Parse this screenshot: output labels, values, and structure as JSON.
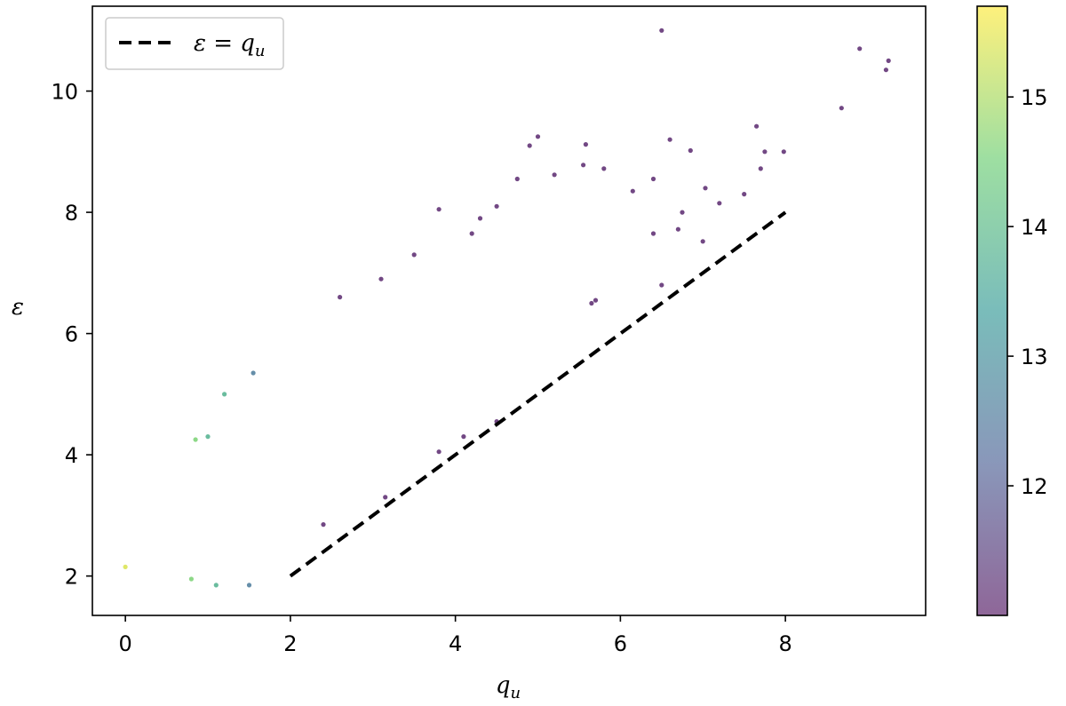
{
  "chart_data": {
    "type": "scatter",
    "xlabel": "q",
    "xlabel_sub": "u",
    "ylabel": "ε",
    "xlim": [
      -0.4,
      9.7
    ],
    "ylim": [
      1.35,
      11.4
    ],
    "xticks": [
      0,
      2,
      4,
      6,
      8
    ],
    "yticks": [
      2,
      4,
      6,
      8,
      10
    ],
    "grid": false,
    "legend_position": "top-left",
    "reference_line": {
      "style": "dashed",
      "color": "#000000",
      "label_lhs": "ε = q",
      "label_sub": "u",
      "x": [
        2,
        8
      ],
      "y": [
        2,
        8
      ]
    },
    "colormap": "viridis",
    "colorbar": {
      "range": [
        11.0,
        15.7
      ],
      "ticks": [
        12,
        13,
        14,
        15
      ]
    },
    "series": [
      {
        "points": [
          [
            6.5,
            11.0
          ],
          [
            8.9,
            10.7
          ],
          [
            9.25,
            10.5
          ],
          [
            9.22,
            10.35
          ],
          [
            8.68,
            9.72
          ],
          [
            5.0,
            9.25
          ],
          [
            4.9,
            9.1
          ],
          [
            5.58,
            9.12
          ],
          [
            6.6,
            9.2
          ],
          [
            6.85,
            9.02
          ],
          [
            7.65,
            9.42
          ],
          [
            7.75,
            9.0
          ],
          [
            7.98,
            9.0
          ],
          [
            7.7,
            8.72
          ],
          [
            7.5,
            8.3
          ],
          [
            7.03,
            8.4
          ],
          [
            7.2,
            8.15
          ],
          [
            6.4,
            8.55
          ],
          [
            6.75,
            8.0
          ],
          [
            5.2,
            8.62
          ],
          [
            5.55,
            8.78
          ],
          [
            4.75,
            8.55
          ],
          [
            5.8,
            8.72
          ],
          [
            6.15,
            8.35
          ],
          [
            4.5,
            8.1
          ],
          [
            3.8,
            8.05
          ],
          [
            4.3,
            7.9
          ],
          [
            4.2,
            7.65
          ],
          [
            6.4,
            7.65
          ],
          [
            6.7,
            7.72
          ],
          [
            7.0,
            7.52
          ],
          [
            6.5,
            6.8
          ],
          [
            5.7,
            6.55
          ],
          [
            5.65,
            6.5
          ],
          [
            3.5,
            7.3
          ],
          [
            3.1,
            6.9
          ],
          [
            2.6,
            6.6
          ],
          [
            1.55,
            5.35
          ],
          [
            1.2,
            5.0
          ],
          [
            1.0,
            4.3
          ],
          [
            0.85,
            4.25
          ],
          [
            1.1,
            1.85
          ],
          [
            1.5,
            1.85
          ],
          [
            0.8,
            1.95
          ],
          [
            0.0,
            2.15
          ],
          [
            2.4,
            2.85
          ],
          [
            3.15,
            3.3
          ],
          [
            4.1,
            4.3
          ],
          [
            3.8,
            4.05
          ],
          [
            4.5,
            4.55
          ]
        ]
      }
    ]
  }
}
